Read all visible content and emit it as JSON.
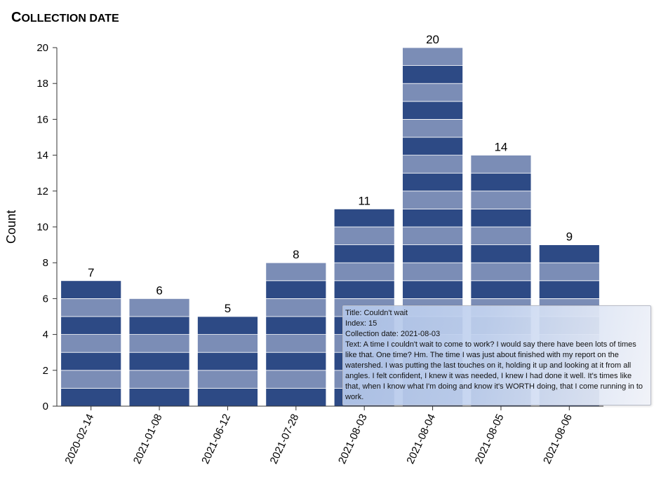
{
  "chart_data": {
    "type": "bar",
    "title": "Collection date",
    "xlabel": "",
    "ylabel": "Count",
    "ylim": [
      0,
      20
    ],
    "yticks": [
      "0",
      "2",
      "4",
      "6",
      "8",
      "10",
      "12",
      "14",
      "16",
      "18",
      "20"
    ],
    "categories": [
      "2020-02-14",
      "2021-01-08",
      "2021-06-12",
      "2021-07-28",
      "2021-08-03",
      "2021-08-04",
      "2021-08-05",
      "2021-08-06"
    ],
    "values": [
      7,
      6,
      5,
      8,
      11,
      20,
      14,
      9
    ],
    "value_labels": [
      "7",
      "6",
      "5",
      "8",
      "11",
      "20",
      "14",
      "9"
    ],
    "segment_colors": [
      "#2d4a85",
      "#7b8db6"
    ],
    "grid": false
  },
  "tooltip": {
    "title": "Title: Couldn't wait",
    "index": "Index: 15",
    "date": "Collection date: 2021-08-03",
    "text": "Text: A time I couldn't wait to come to work? I would say there have been lots of times like that. One time? Hm. The time I was just about finished with my report on the watershed. I was putting the last touches on it, holding it up and looking at it from all angles. I felt confident, I knew it was needed, I knew I had done it well. It's times like that, when I know what I'm doing and know it's WORTH doing, that I come running in to work."
  }
}
